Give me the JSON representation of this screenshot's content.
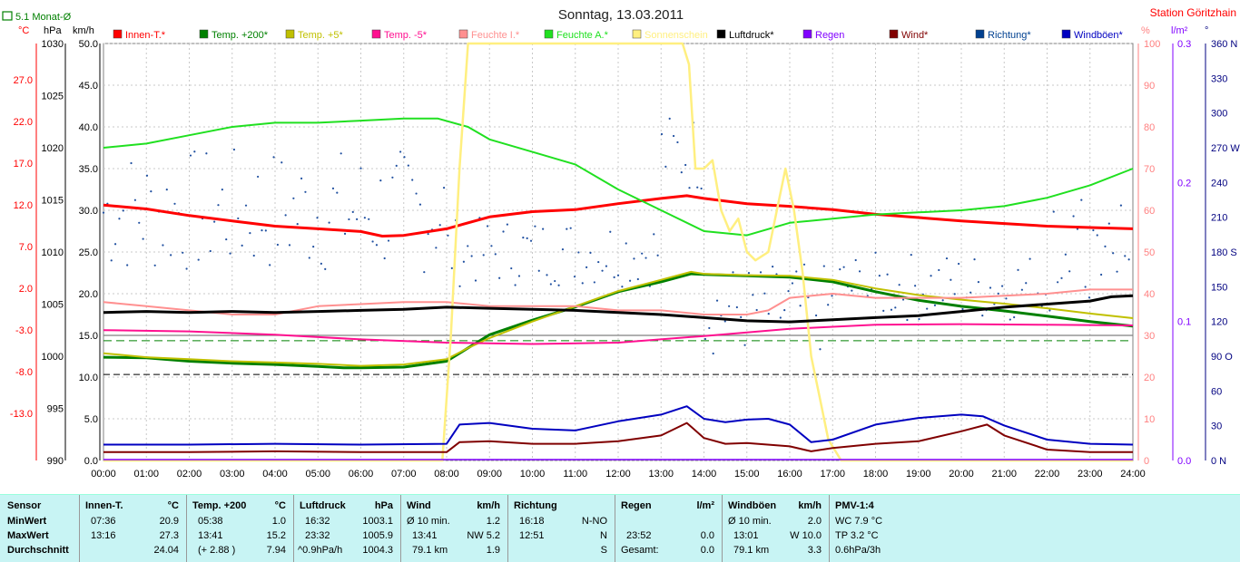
{
  "chart_data": {
    "type": "line",
    "title": "Sonntag, 13.03.2011",
    "station": "Station Göritzhain",
    "month_avg_label": "5.1 Monat-Ø",
    "unit_labels": {
      "temp": "°C",
      "pressure": "hPa",
      "wind": "km/h",
      "percent": "%",
      "rain": "l/m²",
      "direction": "°"
    },
    "axes": {
      "temp_ticks": [
        "27.0",
        "22.0",
        "17.0",
        "12.0",
        "7.0",
        "2.0",
        "-3.0",
        "-8.0",
        "-13.0"
      ],
      "pressure_ticks": [
        "1030",
        "1025",
        "1020",
        "1015",
        "1010",
        "1005",
        "1000",
        "995",
        "990"
      ],
      "wind_ticks": [
        "50.0",
        "45.0",
        "40.0",
        "35.0",
        "30.0",
        "25.0",
        "20.0",
        "15.0",
        "10.0",
        "5.0",
        "0.0"
      ],
      "percent_ticks": [
        "100",
        "90",
        "80",
        "70",
        "60",
        "50",
        "40",
        "30",
        "20",
        "10",
        "0"
      ],
      "rain_ticks": [
        "0.3",
        "0.2",
        "0.1",
        "0.0"
      ],
      "direction_ticks": [
        "360 N",
        "330",
        "300",
        "270 W",
        "240",
        "210",
        "180 S",
        "150",
        "120",
        "90 O",
        "60",
        "30",
        "0 N"
      ],
      "x_ticks": [
        "00:00",
        "01:00",
        "02:00",
        "03:00",
        "04:00",
        "05:00",
        "06:00",
        "07:00",
        "08:00",
        "09:00",
        "10:00",
        "11:00",
        "12:00",
        "13:00",
        "14:00",
        "15:00",
        "16:00",
        "17:00",
        "18:00",
        "19:00",
        "20:00",
        "21:00",
        "22:00",
        "23:00",
        "24:00"
      ]
    },
    "legend": [
      {
        "name": "Innen-T.*",
        "color": "#ff0000"
      },
      {
        "name": "Temp. +200*",
        "color": "#008000"
      },
      {
        "name": "Temp. +5*",
        "color": "#c0c000"
      },
      {
        "name": "Temp. -5*",
        "color": "#ff1090"
      },
      {
        "name": "Feuchte I.*",
        "color": "#ff9090"
      },
      {
        "name": "Feuchte A.*",
        "color": "#20e020"
      },
      {
        "name": "Sonnenschein",
        "color": "#ffef80"
      },
      {
        "name": "Luftdruck*",
        "color": "#000000"
      },
      {
        "name": "Regen",
        "color": "#8000ff"
      },
      {
        "name": "Wind*",
        "color": "#800000"
      },
      {
        "name": "Richtung*",
        "color": "#004090"
      },
      {
        "name": "Windböen*",
        "color": "#0000c0"
      }
    ],
    "series": [
      {
        "name": "Innen-T.*",
        "color": "#ff0000",
        "axis": "temp",
        "x": [
          0,
          1,
          2,
          3,
          4,
          5,
          6,
          6.5,
          7,
          8,
          9,
          10,
          11,
          12,
          13,
          13.6,
          14,
          15,
          16,
          17,
          18,
          19,
          20,
          21,
          22,
          23,
          24
        ],
        "values": [
          25.6,
          25.0,
          24.0,
          23.2,
          22.4,
          22.0,
          21.6,
          20.9,
          21.0,
          22.0,
          23.8,
          24.6,
          24.9,
          25.8,
          26.6,
          27.0,
          26.6,
          25.8,
          25.4,
          24.9,
          24.2,
          23.7,
          23.2,
          22.8,
          22.4,
          22.2,
          22.0
        ]
      },
      {
        "name": "Temp. +200*",
        "color": "#008000",
        "axis": "temp",
        "x": [
          0,
          1,
          2,
          3,
          4,
          5,
          5.6,
          6,
          7,
          8,
          8.5,
          9,
          10,
          11,
          12,
          13,
          13.7,
          14,
          15,
          16,
          17,
          18,
          19,
          20,
          21,
          22,
          23,
          24
        ],
        "values": [
          2.6,
          2.5,
          2.0,
          1.7,
          1.5,
          1.2,
          1.0,
          1.0,
          1.1,
          2.0,
          4.0,
          6.0,
          8.2,
          10.2,
          12.5,
          14.0,
          15.2,
          15.1,
          14.9,
          14.7,
          14.0,
          12.5,
          11.2,
          10.3,
          9.6,
          8.8,
          8.0,
          7.3
        ]
      },
      {
        "name": "Temp. +5*",
        "color": "#c0c000",
        "axis": "temp",
        "x": [
          0,
          1,
          2,
          3,
          4,
          5,
          6,
          7,
          8,
          8.5,
          9,
          10,
          11,
          12,
          13,
          13.7,
          14,
          15,
          16,
          17,
          18,
          19,
          20,
          21,
          22,
          23,
          24
        ],
        "values": [
          3.2,
          2.6,
          2.3,
          2.0,
          1.8,
          1.6,
          1.3,
          1.5,
          2.3,
          4.0,
          5.5,
          8.0,
          10.3,
          12.6,
          14.3,
          15.5,
          15.2,
          15.0,
          14.9,
          14.3,
          13.0,
          12.0,
          11.3,
          10.7,
          10.0,
          9.2,
          8.5
        ]
      },
      {
        "name": "Temp. -5*",
        "color": "#ff1090",
        "axis": "temp",
        "x": [
          0,
          2,
          4,
          6,
          8,
          10,
          12,
          14,
          16,
          18,
          20,
          22,
          24
        ],
        "values": [
          6.7,
          6.5,
          6.0,
          5.3,
          4.8,
          4.6,
          4.8,
          5.8,
          6.9,
          7.5,
          7.6,
          7.5,
          7.4
        ]
      },
      {
        "name": "Feuchte I.*",
        "color": "#ff9090",
        "axis": "percent",
        "x": [
          0,
          1,
          2,
          3,
          4,
          5,
          6,
          7,
          8,
          9,
          10,
          11,
          12,
          13,
          14,
          15,
          15.5,
          16,
          17,
          18,
          19,
          20,
          21,
          22,
          23,
          24
        ],
        "values": [
          38,
          37,
          36,
          35,
          35,
          37,
          37.5,
          38,
          38,
          37,
          37,
          37,
          36,
          36,
          35,
          35,
          36,
          39,
          40,
          39,
          39,
          39,
          39.5,
          40,
          41,
          41
        ]
      },
      {
        "name": "Feuchte A.*",
        "color": "#20e020",
        "axis": "percent",
        "x": [
          0,
          1,
          2,
          3,
          4,
          5,
          6,
          7,
          7.8,
          8.5,
          9,
          10,
          11,
          12,
          13,
          14,
          15,
          16,
          17,
          18,
          19,
          20,
          21,
          22,
          23,
          24
        ],
        "values": [
          75,
          76,
          78,
          80,
          81,
          81,
          81.5,
          82,
          82,
          80,
          77,
          74,
          71,
          65,
          60,
          55,
          54,
          57,
          58,
          59,
          59.5,
          60,
          61,
          63,
          66,
          70
        ]
      },
      {
        "name": "Sonnenschein",
        "color": "#ffef80",
        "axis": "percent",
        "x": [
          0,
          7.9,
          8.1,
          8.3,
          8.5,
          8.7,
          9,
          10,
          11,
          12,
          13,
          13.5,
          13.65,
          13.8,
          14,
          14.2,
          14.4,
          14.6,
          14.8,
          15,
          15.2,
          15.5,
          15.7,
          15.9,
          16.1,
          16.3,
          16.5,
          16.7,
          16.9,
          17.2,
          24
        ],
        "values": [
          0,
          0,
          30,
          70,
          100,
          100,
          100,
          100,
          100,
          100,
          100,
          100,
          95,
          70,
          70,
          72,
          60,
          55,
          58,
          50,
          48,
          50,
          60,
          70,
          60,
          45,
          25,
          15,
          5,
          0,
          0
        ]
      },
      {
        "name": "Luftdruck*",
        "color": "#000000",
        "axis": "pressure",
        "x": [
          0,
          1,
          2,
          3,
          4,
          5,
          6,
          7,
          8,
          9,
          10,
          11,
          12,
          13,
          14,
          15,
          16,
          17,
          18,
          19,
          20,
          21,
          22,
          23,
          23.5,
          24
        ],
        "values": [
          1004.2,
          1004.3,
          1004.2,
          1004.3,
          1004.2,
          1004.3,
          1004.4,
          1004.5,
          1004.7,
          1004.6,
          1004.5,
          1004.4,
          1004.2,
          1004.0,
          1003.7,
          1003.4,
          1003.3,
          1003.5,
          1003.7,
          1003.9,
          1004.3,
          1004.7,
          1005.0,
          1005.3,
          1005.7,
          1005.8
        ]
      },
      {
        "name": "Wind*",
        "color": "#800000",
        "axis": "wind",
        "x": [
          0,
          2,
          4,
          6,
          8,
          8.3,
          9,
          10,
          11,
          12,
          13,
          13.6,
          14,
          14.5,
          15,
          16,
          16.5,
          17,
          18,
          19,
          20,
          20.6,
          21,
          22,
          23,
          24
        ],
        "values": [
          1.0,
          1.0,
          1.1,
          1.0,
          1.0,
          2.2,
          2.3,
          2.0,
          2.0,
          2.3,
          3.0,
          4.5,
          2.7,
          2.0,
          2.1,
          1.7,
          1.1,
          1.5,
          2.0,
          2.3,
          3.5,
          4.3,
          3.0,
          1.3,
          1.0,
          1.0
        ]
      },
      {
        "name": "Windböen*",
        "color": "#0000c0",
        "axis": "wind",
        "x": [
          0,
          2,
          4,
          6,
          8,
          8.3,
          9,
          10,
          11,
          12,
          13,
          13.6,
          14,
          14.5,
          15,
          15.5,
          16,
          16.5,
          17,
          18,
          19,
          20,
          20.5,
          21,
          22,
          23,
          24
        ],
        "values": [
          1.9,
          1.9,
          2.0,
          1.9,
          2.0,
          4.3,
          4.5,
          3.8,
          3.6,
          4.7,
          5.5,
          6.5,
          5.0,
          4.6,
          4.9,
          5.0,
          4.3,
          2.2,
          2.5,
          4.3,
          5.1,
          5.5,
          5.3,
          4.2,
          2.5,
          2.0,
          1.9
        ]
      }
    ],
    "richtung_scatter": {
      "name": "Richtung*",
      "color": "#003080",
      "note_axis": "direction"
    }
  },
  "panel": {
    "sensor": {
      "title": "Sensor",
      "rows": [
        "MinWert",
        "MaxWert",
        "Durchschnitt"
      ]
    },
    "innen": {
      "title": "Innen-T.",
      "unit": "°C",
      "rows": [
        [
          "07:36",
          "20.9"
        ],
        [
          "13:16",
          "27.3"
        ],
        [
          "",
          "24.04"
        ]
      ]
    },
    "temp200": {
      "title": "Temp. +200",
      "unit": "°C",
      "rows": [
        [
          "05:38",
          "1.0"
        ],
        [
          "13:41",
          "15.2"
        ],
        [
          "(+ 2.88 )",
          "7.94"
        ]
      ]
    },
    "luftdruck": {
      "title": "Luftdruck",
      "unit": "hPa",
      "rows": [
        [
          "16:32",
          "1003.1"
        ],
        [
          "23:32",
          "1005.9"
        ],
        [
          "^0.9hPa/h",
          "1004.3"
        ]
      ]
    },
    "wind": {
      "title": "Wind",
      "unit": "km/h",
      "rows": [
        [
          "Ø 10 min.",
          "1.2"
        ],
        [
          "13:41",
          "NW 5.2"
        ],
        [
          "79.1 km",
          "1.9"
        ]
      ]
    },
    "richtung": {
      "title": "Richtung",
      "unit": "",
      "rows": [
        [
          "16:18",
          "N-NO"
        ],
        [
          "12:51",
          "N"
        ],
        [
          "",
          "S"
        ]
      ]
    },
    "regen": {
      "title": "Regen",
      "unit": "l/m²",
      "rows": [
        [
          "",
          ""
        ],
        [
          "23:52",
          "0.0"
        ],
        [
          "Gesamt:",
          "0.0"
        ]
      ]
    },
    "boeen": {
      "title": "Windböen",
      "unit": "km/h",
      "rows": [
        [
          "Ø 10 min.",
          "2.0"
        ],
        [
          "13:01",
          "W 10.0"
        ],
        [
          "79.1 km",
          "3.3"
        ]
      ]
    },
    "pmv": {
      "title": "PMV-1:4",
      "rows": [
        "WC 7.9 °C",
        "TP 3.2 °C",
        "0.6hPa/3h"
      ]
    }
  }
}
